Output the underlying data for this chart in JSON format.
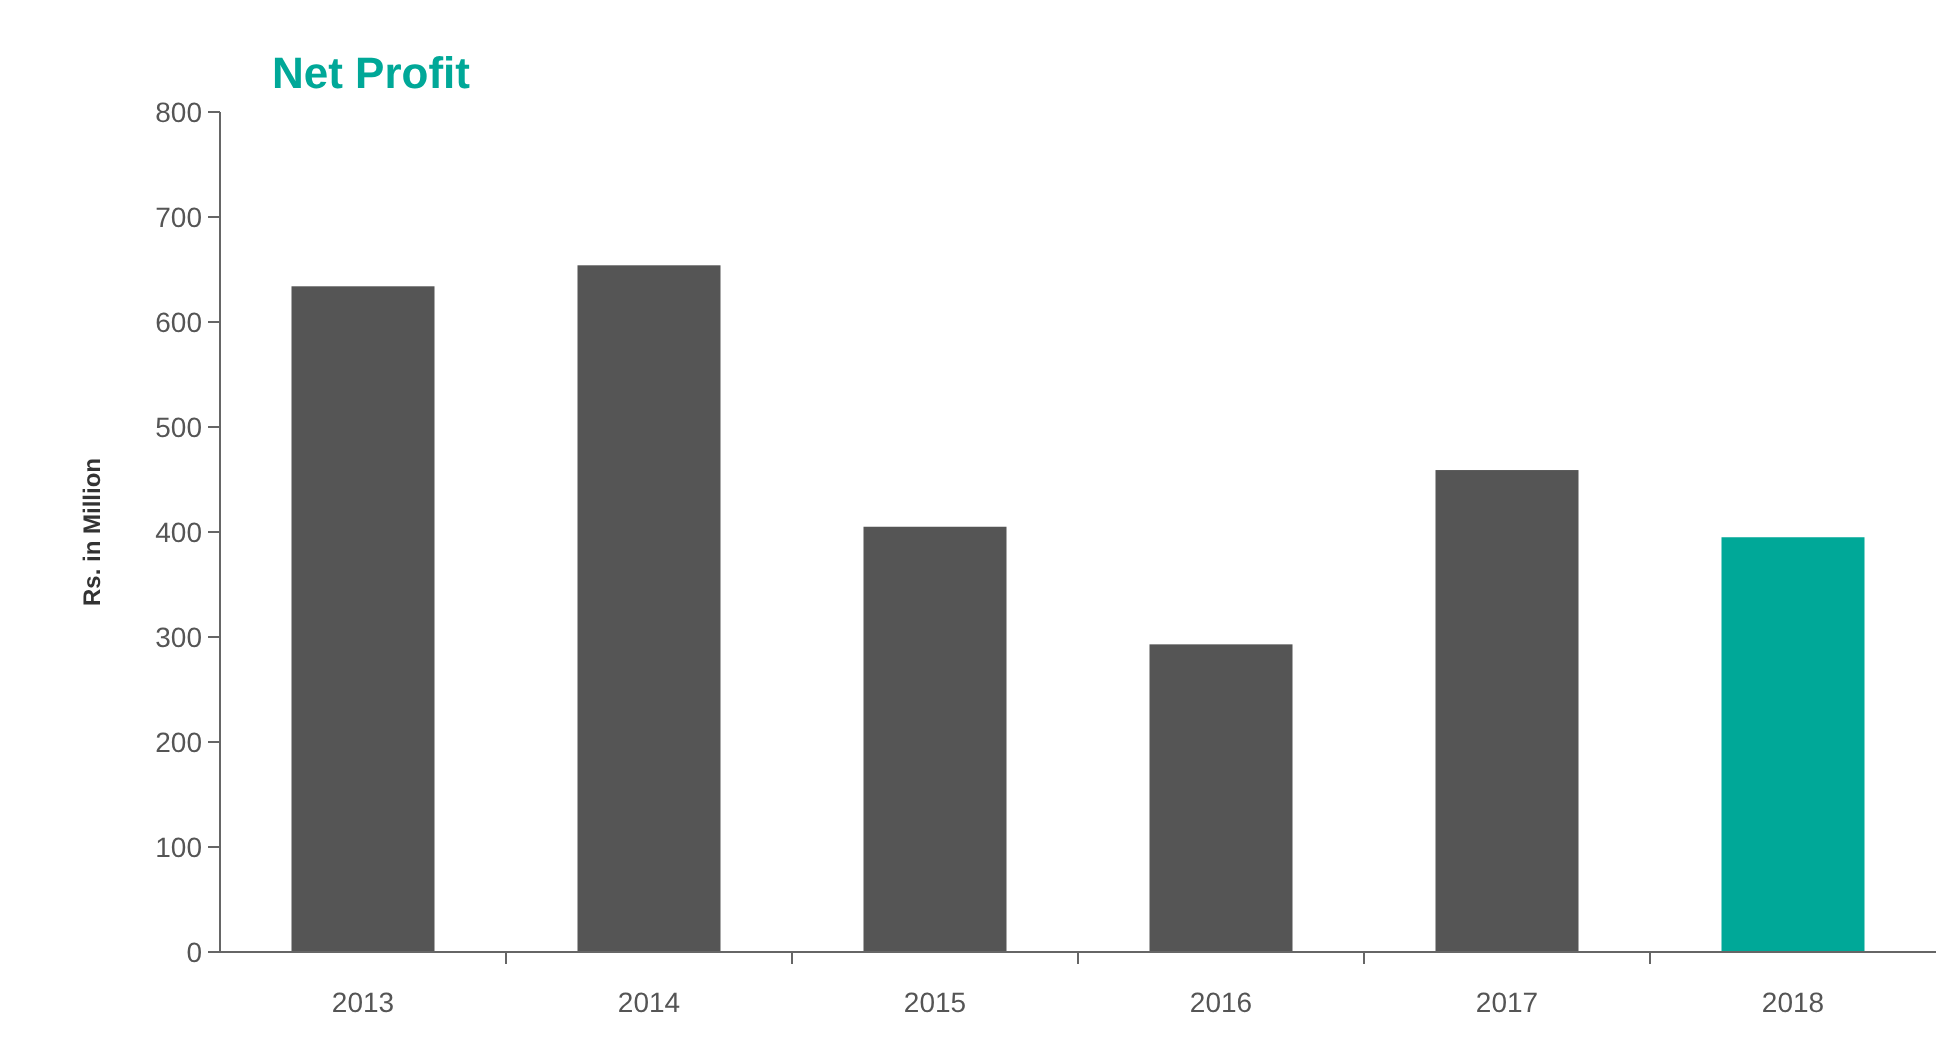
{
  "chart_data": {
    "type": "bar",
    "title": "Net Profit",
    "ylabel": "Rs. in Million",
    "categories": [
      "2013",
      "2014",
      "2015",
      "2016",
      "2017",
      "2018"
    ],
    "values": [
      634,
      654,
      405,
      293,
      459,
      395
    ],
    "colors": [
      "#555555",
      "#555555",
      "#555555",
      "#555555",
      "#555555",
      "#00a898"
    ],
    "ylim": [
      0,
      800
    ],
    "yticks": [
      0,
      100,
      200,
      300,
      400,
      500,
      600,
      700,
      800
    ],
    "grid": false
  }
}
